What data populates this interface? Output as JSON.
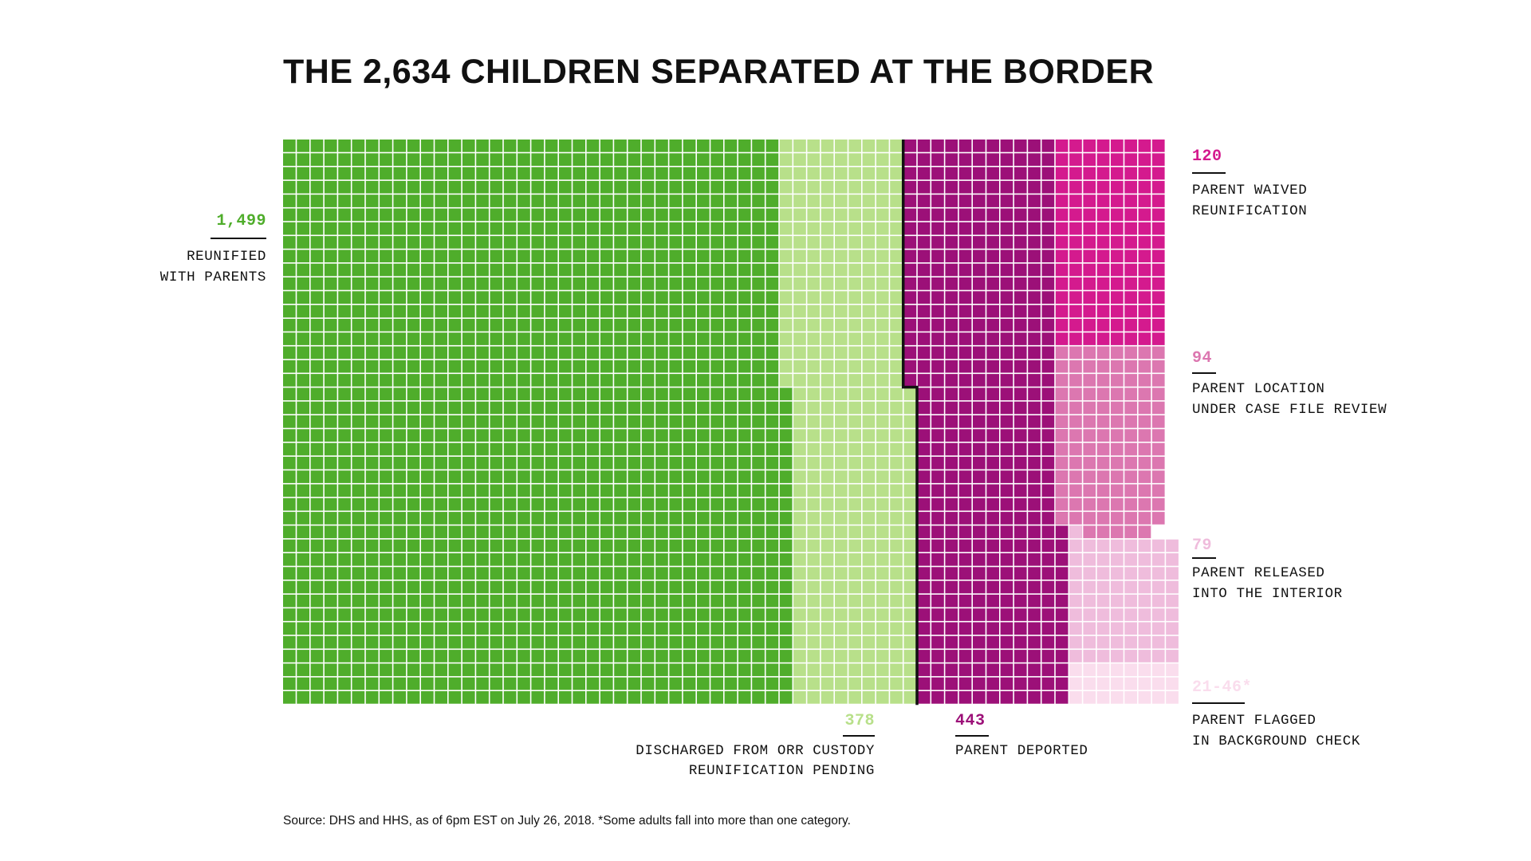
{
  "title": "THE 2,634 CHILDREN SEPARATED AT THE BORDER",
  "source": "Source: DHS and HHS, as of 6pm EST on July 26, 2018. *Some adults fall into more than one category.",
  "chart_data": {
    "type": "waffle",
    "total": 2634,
    "unit": "child",
    "categories": [
      {
        "key": "reunified",
        "value_label": "1,499",
        "value": 1499,
        "label_lines": [
          "REUNIFIED",
          "WITH PARENTS"
        ],
        "color": "#4fad2b"
      },
      {
        "key": "discharged",
        "value_label": "378",
        "value": 378,
        "label_lines": [
          "DISCHARGED FROM ORR CUSTODY",
          "REUNIFICATION PENDING"
        ],
        "color": "#b8e08a"
      },
      {
        "key": "deported",
        "value_label": "443",
        "value": 443,
        "label_lines": [
          "PARENT DEPORTED"
        ],
        "color": "#9c1078"
      },
      {
        "key": "waived",
        "value_label": "120",
        "value": 120,
        "label_lines": [
          "PARENT WAIVED",
          "REUNIFICATION"
        ],
        "color": "#d41a8e"
      },
      {
        "key": "location",
        "value_label": "94",
        "value": 94,
        "label_lines": [
          "PARENT LOCATION",
          "UNDER CASE FILE REVIEW"
        ],
        "color": "#dc77b0"
      },
      {
        "key": "released",
        "value_label": "79",
        "value": 79,
        "label_lines": [
          "PARENT RELEASED",
          "INTO THE INTERIOR"
        ],
        "color": "#efbcdc"
      },
      {
        "key": "flagged",
        "value_label": "21-46*",
        "value": 21,
        "value_max": 46,
        "label_lines": [
          "PARENT FLAGGED",
          "IN BACKGROUND CHECK"
        ],
        "color": "#fadded"
      }
    ]
  }
}
